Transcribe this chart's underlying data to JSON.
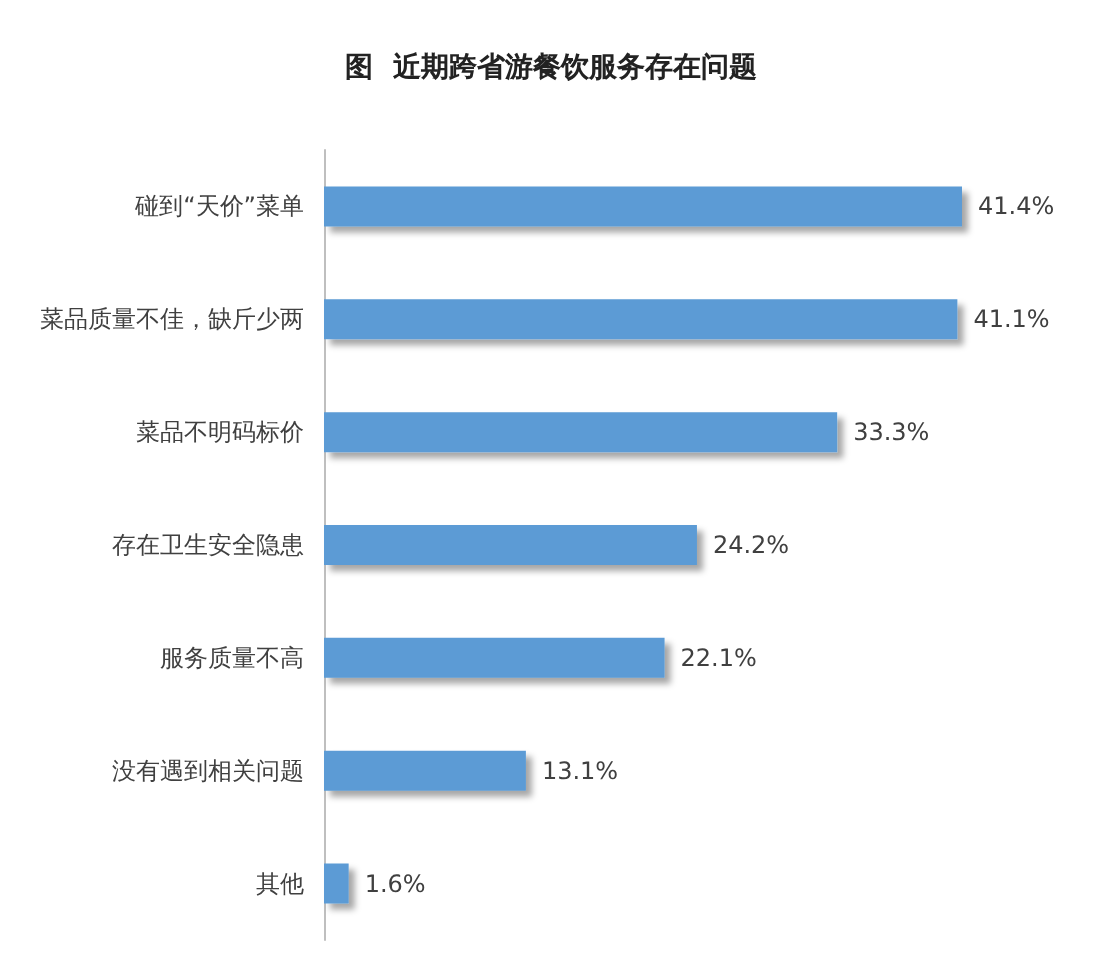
{
  "chart_data": {
    "type": "bar",
    "orientation": "horizontal",
    "title": "图  近期跨省游餐饮服务存在问题",
    "categories": [
      "碰到“天价”菜单",
      "菜品质量不佳，缺斤少两",
      "菜品不明码标价",
      "存在卫生安全隐患",
      "服务质量不高",
      "没有遇到相关问题",
      "其他"
    ],
    "values": [
      41.4,
      41.1,
      33.3,
      24.2,
      22.1,
      13.1,
      1.6
    ],
    "value_labels": [
      "41.4%",
      "41.1%",
      "33.3%",
      "24.2%",
      "22.1%",
      "13.1%",
      "1.6%"
    ],
    "color": "#5b9bd5"
  }
}
